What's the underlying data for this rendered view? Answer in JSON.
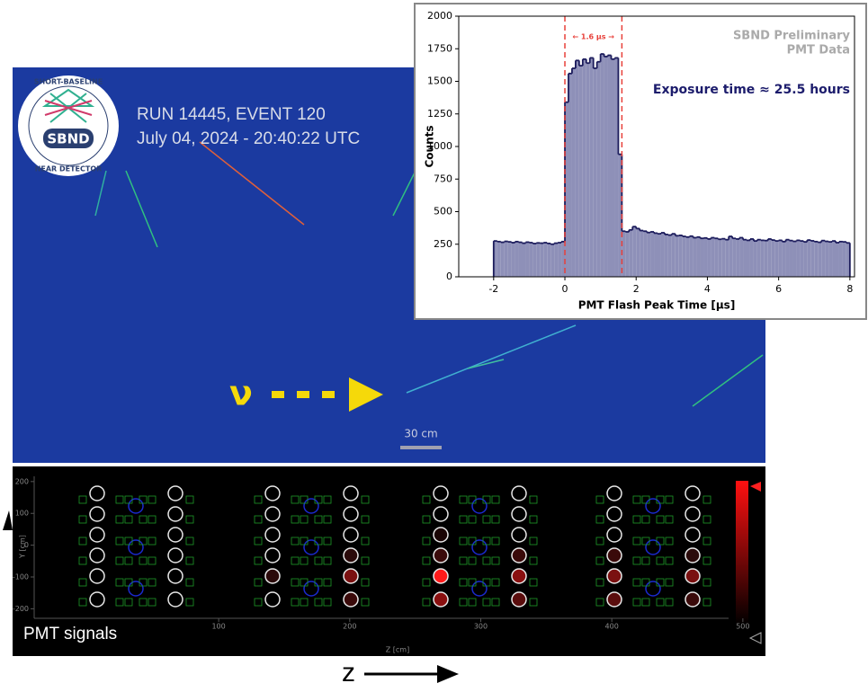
{
  "event": {
    "run": "RUN 14445, EVENT 120",
    "date": "July 04, 2024 - 20:40:22 UTC",
    "scale": "30 cm",
    "neutrino": "ν",
    "logo": {
      "name": "SBND",
      "top": "SHORT-BASELINE",
      "bottom": "NEAR DETECTOR"
    }
  },
  "pmt_panel": {
    "label": "PMT signals",
    "xlabel": "Z [cm]",
    "ylabel": "Y [cm]",
    "xlim": [
      -40.8,
      520
    ],
    "xticks": [
      100,
      200,
      300,
      400,
      500
    ],
    "ylim": [
      -230,
      225
    ],
    "yticks": [
      200,
      100,
      0,
      -100,
      -200
    ]
  },
  "axis_label": "z",
  "chart_data": {
    "type": "histogram",
    "xlabel": "PMT Flash Peak Time [μs]",
    "ylabel": "Counts",
    "annotation": "SBND Preliminary",
    "annotation2": "PMT Data",
    "exposure": "Exposure time ≈ 25.5 hours",
    "window_label": "← 1.6 μs →",
    "vlines": [
      0,
      1.6
    ],
    "color": "#8e90b8",
    "edge_color": "#1c1c5c",
    "vline_color": "#e8403a",
    "xlim": [
      -2.98,
      8.13
    ],
    "xticks": [
      -2,
      0,
      2,
      4,
      6,
      8
    ],
    "ylim": [
      0,
      2000
    ],
    "yticks": [
      0,
      250,
      500,
      750,
      1000,
      1250,
      1500,
      1750,
      2000
    ],
    "bins": [
      -2,
      -1.9,
      -1.8,
      -1.7,
      -1.6,
      -1.5,
      -1.4,
      -1.3,
      -1.2,
      -1.1,
      -1,
      -0.9,
      -0.8,
      -0.7,
      -0.6,
      -0.5,
      -0.4,
      -0.3,
      -0.2,
      -0.1,
      0,
      0.1,
      0.2,
      0.3,
      0.4,
      0.5,
      0.6,
      0.7,
      0.8,
      0.9,
      1,
      1.1,
      1.2,
      1.3,
      1.4,
      1.5,
      1.6,
      1.7,
      1.8,
      1.9,
      2,
      2.1,
      2.2,
      2.3,
      2.4,
      2.5,
      2.6,
      2.7,
      2.8,
      2.9,
      3,
      3.1,
      3.2,
      3.3,
      3.4,
      3.5,
      3.6,
      3.7,
      3.8,
      3.9,
      4,
      4.1,
      4.2,
      4.3,
      4.4,
      4.5,
      4.6,
      4.7,
      4.8,
      4.9,
      5,
      5.1,
      5.2,
      5.3,
      5.4,
      5.5,
      5.6,
      5.7,
      5.8,
      5.9,
      6,
      6.1,
      6.2,
      6.3,
      6.4,
      6.5,
      6.6,
      6.7,
      6.8,
      6.9,
      7,
      7.1,
      7.2,
      7.3,
      7.4,
      7.5,
      7.6,
      7.7,
      7.8,
      7.9,
      8
    ],
    "values": [
      275,
      270,
      265,
      272,
      268,
      262,
      270,
      265,
      258,
      266,
      262,
      255,
      260,
      258,
      262,
      256,
      250,
      258,
      262,
      270,
      1340,
      1560,
      1600,
      1660,
      1620,
      1670,
      1640,
      1680,
      1600,
      1650,
      1710,
      1690,
      1700,
      1670,
      1680,
      940,
      350,
      345,
      360,
      385,
      370,
      355,
      350,
      340,
      345,
      335,
      330,
      338,
      325,
      320,
      330,
      315,
      318,
      310,
      305,
      312,
      300,
      305,
      295,
      298,
      290,
      300,
      295,
      288,
      292,
      285,
      310,
      295,
      290,
      300,
      285,
      280,
      290,
      275,
      285,
      280,
      278,
      290,
      282,
      275,
      280,
      270,
      285,
      278,
      272,
      280,
      275,
      268,
      282,
      276,
      270,
      265,
      278,
      272,
      268,
      275,
      262,
      270,
      268,
      260
    ]
  }
}
